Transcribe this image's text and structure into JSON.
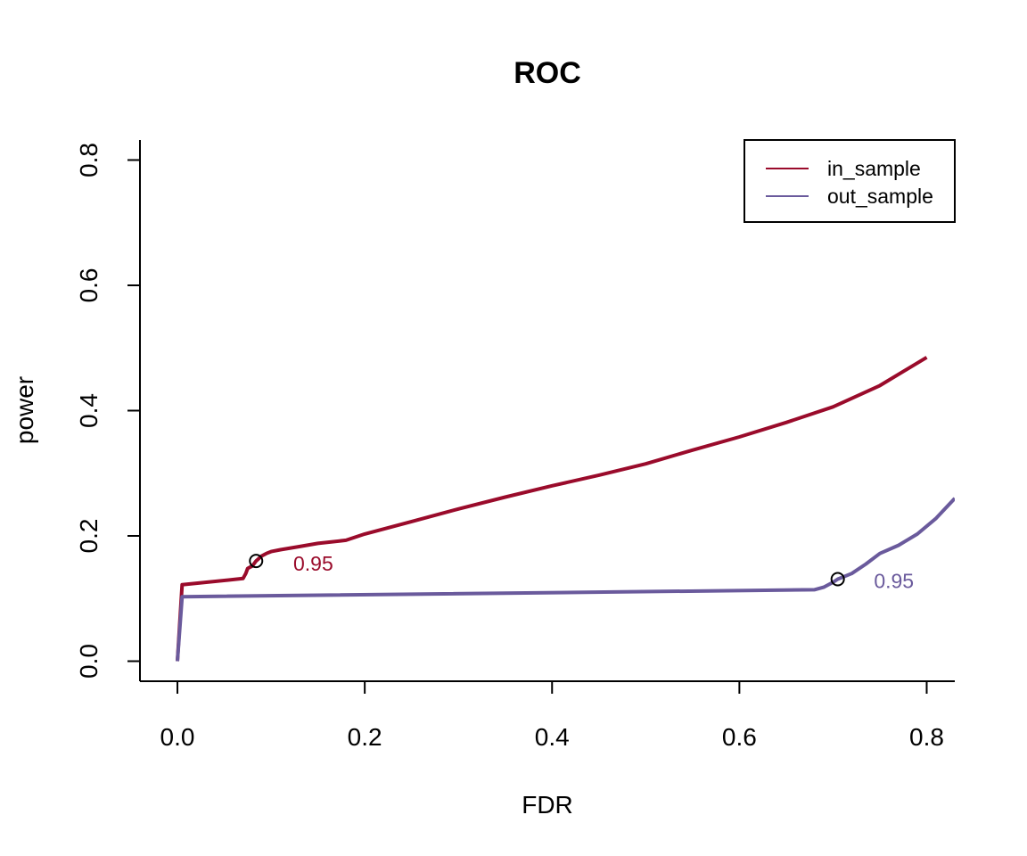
{
  "chart_data": {
    "type": "line",
    "title": "ROC",
    "xlabel": "FDR",
    "ylabel": "power",
    "xlim": [
      -0.04,
      0.83
    ],
    "ylim": [
      -0.032,
      0.832
    ],
    "xticks": [
      0.0,
      0.2,
      0.4,
      0.6,
      0.8
    ],
    "xtick_labels": [
      "0.0",
      "0.2",
      "0.4",
      "0.6",
      "0.8"
    ],
    "yticks": [
      0.0,
      0.2,
      0.4,
      0.6,
      0.8
    ],
    "ytick_labels": [
      "0.0",
      "0.2",
      "0.4",
      "0.6",
      "0.8"
    ],
    "grid": false,
    "legend_position": "top-right",
    "series": [
      {
        "name": "in_sample",
        "color": "#9a0b2b",
        "points": [
          [
            0.0,
            0.0
          ],
          [
            0.005,
            0.122
          ],
          [
            0.07,
            0.132
          ],
          [
            0.073,
            0.14
          ],
          [
            0.075,
            0.148
          ],
          [
            0.08,
            0.152
          ],
          [
            0.084,
            0.16
          ],
          [
            0.09,
            0.168
          ],
          [
            0.095,
            0.172
          ],
          [
            0.1,
            0.175
          ],
          [
            0.11,
            0.178
          ],
          [
            0.13,
            0.183
          ],
          [
            0.15,
            0.188
          ],
          [
            0.18,
            0.193
          ],
          [
            0.2,
            0.203
          ],
          [
            0.25,
            0.223
          ],
          [
            0.3,
            0.243
          ],
          [
            0.35,
            0.262
          ],
          [
            0.4,
            0.28
          ],
          [
            0.45,
            0.297
          ],
          [
            0.5,
            0.315
          ],
          [
            0.55,
            0.337
          ],
          [
            0.6,
            0.358
          ],
          [
            0.65,
            0.381
          ],
          [
            0.7,
            0.406
          ],
          [
            0.75,
            0.44
          ],
          [
            0.8,
            0.485
          ]
        ],
        "marker": {
          "x": 0.084,
          "y": 0.16,
          "label": "0.95",
          "label_x": 0.145,
          "label_y": 0.156
        }
      },
      {
        "name": "out_sample",
        "color": "#6a5a9c",
        "points": [
          [
            0.0,
            0.0
          ],
          [
            0.005,
            0.103
          ],
          [
            0.68,
            0.114
          ],
          [
            0.69,
            0.118
          ],
          [
            0.7,
            0.126
          ],
          [
            0.705,
            0.131
          ],
          [
            0.72,
            0.14
          ],
          [
            0.735,
            0.155
          ],
          [
            0.75,
            0.172
          ],
          [
            0.77,
            0.185
          ],
          [
            0.79,
            0.203
          ],
          [
            0.81,
            0.228
          ],
          [
            0.83,
            0.26
          ]
        ],
        "marker": {
          "x": 0.705,
          "y": 0.131,
          "label": "0.95",
          "label_x": 0.765,
          "label_y": 0.128
        }
      }
    ]
  }
}
